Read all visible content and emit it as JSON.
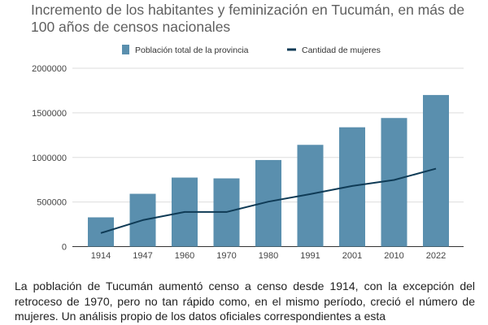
{
  "chart_data": {
    "type": "bar",
    "title": "Incremento de los habitantes y feminización en Tucumán, en más de 100 años de censos nacionales",
    "xlabel": "",
    "ylabel": "",
    "ylim": [
      0,
      2000000
    ],
    "yticks": [
      "0",
      "500000",
      "1000000",
      "1500000",
      "2000000"
    ],
    "grid": true,
    "legend_position": "top-center",
    "categories": [
      "1914",
      "1947",
      "1960",
      "1970",
      "1980",
      "1991",
      "2001",
      "2010",
      "2022"
    ],
    "series": [
      {
        "name": "Población total de la provincia",
        "type": "bar",
        "color": "#5a8fae",
        "values": [
          328000,
          592000,
          774000,
          765000,
          971000,
          1141000,
          1338000,
          1442000,
          1700000
        ]
      },
      {
        "name": "Cantidad de mujeres",
        "type": "line",
        "color": "#0f3b56",
        "values": [
          152000,
          297000,
          388000,
          388000,
          504000,
          589000,
          680000,
          747000,
          874000
        ]
      }
    ]
  },
  "article": {
    "paragraph": "La población de Tucumán aumentó censo a censo desde 1914, con la excepción del retroceso de 1970, pero no tan rápido como, en el mismo período, creció el número de mujeres. Un análisis propio de los datos oficiales correspondientes a esta"
  }
}
